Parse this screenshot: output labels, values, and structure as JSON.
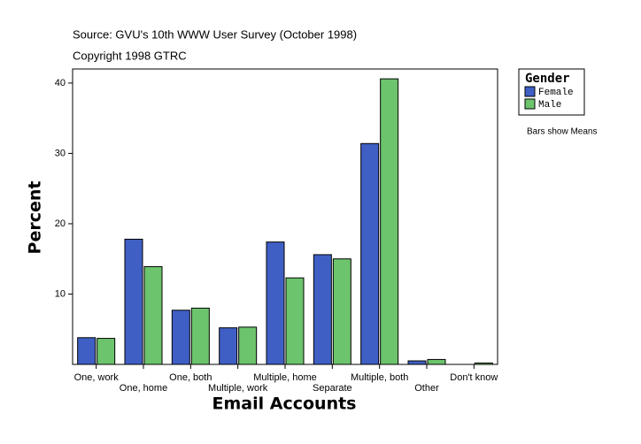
{
  "chart_data": {
    "type": "bar",
    "title": "Source: GVU's 10th WWW User Survey (October 1998)",
    "subtitle": "Copyright 1998 GTRC",
    "x_label": "Email Accounts",
    "y_label": "Percent",
    "legend_title": "Gender",
    "legend": "right",
    "note": "Bars show Means",
    "categories": [
      "One, work",
      "One, home",
      "One, both",
      "Multiple, work",
      "Multiple, home",
      "Separate",
      "Multiple, both",
      "Other",
      "Don't know"
    ],
    "series": [
      {
        "name": "Female",
        "color": "#3f5fc4",
        "values": [
          3.8,
          17.8,
          7.7,
          5.2,
          17.4,
          15.6,
          31.4,
          0.5,
          0
        ]
      },
      {
        "name": "Male",
        "color": "#6cc46c",
        "values": [
          3.7,
          13.9,
          8.0,
          5.3,
          12.3,
          15.0,
          40.6,
          0.7,
          0.2
        ]
      }
    ],
    "ylim": [
      0,
      42
    ],
    "yticks": [
      10,
      20,
      30,
      40
    ],
    "grid": false
  }
}
